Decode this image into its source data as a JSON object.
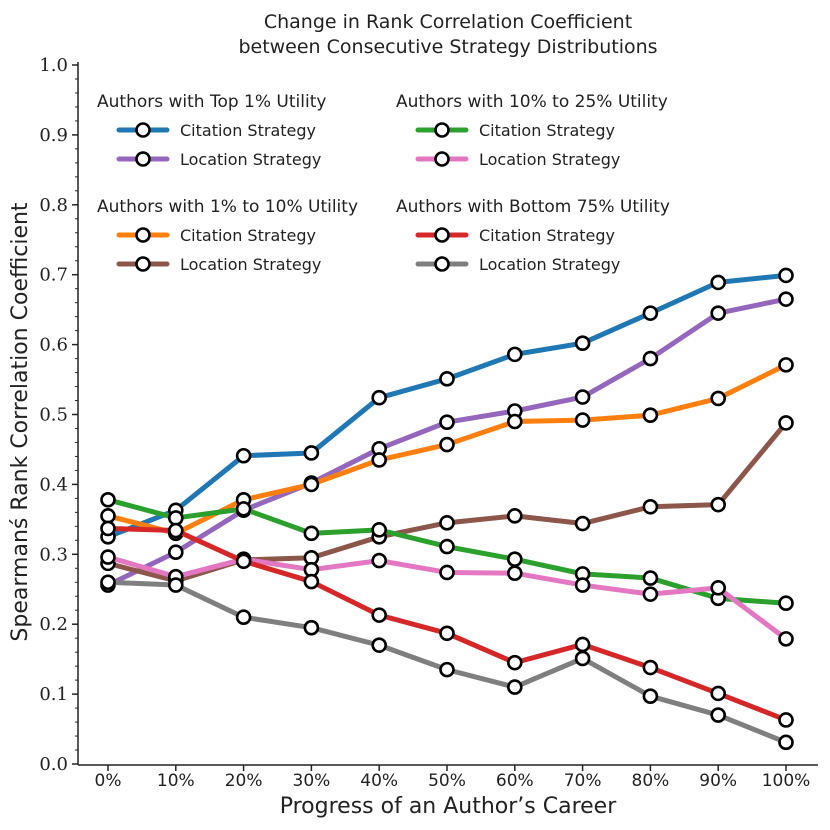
{
  "chart_data": {
    "type": "line",
    "title": "Change in Rank Correlation Coefficient",
    "subtitle": "between Consecutive Strategy Distributions",
    "xlabel": "Progress of an Author’s Career",
    "ylabel": "Spearmanś Rank Correlation Coefficient",
    "ylim": [
      0.0,
      1.0
    ],
    "y_ticks": [
      "0.0",
      "0.1",
      "0.2",
      "0.3",
      "0.4",
      "0.5",
      "0.6",
      "0.7",
      "0.8",
      "0.9",
      "1.0"
    ],
    "categories": [
      "0%",
      "10%",
      "20%",
      "30%",
      "40%",
      "50%",
      "60%",
      "70%",
      "80%",
      "90%",
      "100%"
    ],
    "grid": false,
    "legend_placement": "top-left",
    "legend_groups": [
      {
        "title": "Authors with Top 1% Utility",
        "entries": [
          {
            "series": 0,
            "label": "Citation Strategy"
          },
          {
            "series": 1,
            "label": "Location Strategy"
          }
        ]
      },
      {
        "title": "Authors with 10% to 25% Utility",
        "entries": [
          {
            "series": 4,
            "label": "Citation Strategy"
          },
          {
            "series": 5,
            "label": "Location Strategy"
          }
        ]
      },
      {
        "title": "Authors with 1% to 10% Utility",
        "entries": [
          {
            "series": 2,
            "label": "Citation Strategy"
          },
          {
            "series": 3,
            "label": "Location Strategy"
          }
        ]
      },
      {
        "title": "Authors with Bottom 75% Utility",
        "entries": [
          {
            "series": 6,
            "label": "Citation Strategy"
          },
          {
            "series": 7,
            "label": "Location Strategy"
          }
        ]
      }
    ],
    "series": [
      {
        "key": "top1-citation",
        "color": "#1f77b4",
        "values": [
          0.325,
          0.363,
          0.441,
          0.445,
          0.524,
          0.551,
          0.586,
          0.602,
          0.645,
          0.689,
          0.699
        ]
      },
      {
        "key": "top1-location",
        "color": "#9467bd",
        "values": [
          0.256,
          0.303,
          0.363,
          0.402,
          0.451,
          0.489,
          0.505,
          0.525,
          0.58,
          0.645,
          0.665
        ]
      },
      {
        "key": "1to10-citation",
        "color": "#ff7f0e",
        "values": [
          0.355,
          0.33,
          0.378,
          0.4,
          0.435,
          0.457,
          0.49,
          0.492,
          0.499,
          0.523,
          0.571
        ]
      },
      {
        "key": "1to10-location",
        "color": "#8c564b",
        "values": [
          0.287,
          0.262,
          0.292,
          0.295,
          0.325,
          0.345,
          0.355,
          0.344,
          0.368,
          0.371,
          0.488
        ]
      },
      {
        "key": "10to25-citation",
        "color": "#2ca02c",
        "values": [
          0.378,
          0.352,
          0.365,
          0.33,
          0.335,
          0.311,
          0.293,
          0.272,
          0.266,
          0.237,
          0.23
        ]
      },
      {
        "key": "10to25-location",
        "color": "#e377c2",
        "values": [
          0.296,
          0.268,
          0.293,
          0.278,
          0.291,
          0.274,
          0.273,
          0.256,
          0.243,
          0.252,
          0.179
        ]
      },
      {
        "key": "bottom75-citation",
        "color": "#d62728",
        "values": [
          0.337,
          0.334,
          0.29,
          0.261,
          0.213,
          0.187,
          0.145,
          0.171,
          0.138,
          0.101,
          0.063
        ]
      },
      {
        "key": "bottom75-location",
        "color": "#7f7f7f",
        "values": [
          0.26,
          0.256,
          0.21,
          0.195,
          0.17,
          0.135,
          0.11,
          0.151,
          0.097,
          0.07,
          0.031
        ]
      }
    ]
  }
}
